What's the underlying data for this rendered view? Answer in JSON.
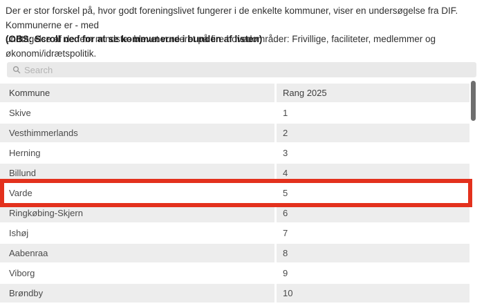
{
  "intro": {
    "line1": "Der er stor forskel på, hvor godt foreningslivet fungerer i de enkelte kommuner, viser en undersøgelse fra DIF.  Kommunerne er - med",
    "line2": "undtagelse af de fem mindste- blevet vurderet på fire hovedområder: Frivillige, faciliteter, medlemmer og økonomi/idrætspolitik.",
    "note": "(OBS: Scroll ned for at se kommunerne i bunden af listen)"
  },
  "search": {
    "placeholder": "Search",
    "value": ""
  },
  "table": {
    "columns": [
      "Kommune",
      "Rang 2025"
    ],
    "rows": [
      {
        "kommune": "Skive",
        "rang": "1"
      },
      {
        "kommune": "Vesthimmerlands",
        "rang": "2"
      },
      {
        "kommune": "Herning",
        "rang": "3"
      },
      {
        "kommune": "Billund",
        "rang": "4"
      },
      {
        "kommune": "Varde",
        "rang": "5"
      },
      {
        "kommune": "Ringkøbing-Skjern",
        "rang": "6"
      },
      {
        "kommune": "Ishøj",
        "rang": "7"
      },
      {
        "kommune": "Aabenraa",
        "rang": "8"
      },
      {
        "kommune": "Viborg",
        "rang": "9"
      },
      {
        "kommune": "Brøndby",
        "rang": "10"
      }
    ],
    "highlighted_row": "Varde"
  },
  "icons": {
    "search": "magnifying-glass"
  },
  "colors": {
    "highlight_border": "#e3311d",
    "row_shaded": "#ededed",
    "search_background": "#e9e9e9",
    "scrollbar_thumb": "#6f6f6f"
  }
}
